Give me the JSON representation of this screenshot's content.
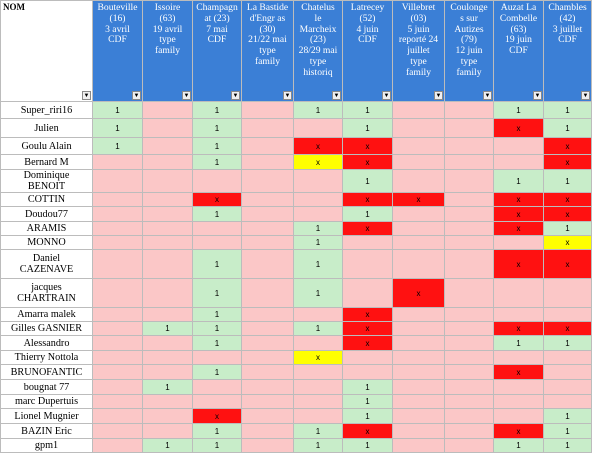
{
  "colors": {
    "header": "#3b7fd6",
    "empty": "#fbc7c7",
    "present": "#c8edc9",
    "absent_red": "#ff1111",
    "pending_yellow": "#ffff00"
  },
  "name_header": "NOM",
  "dropdown_icon": "chevron-down-icon",
  "columns": [
    "Bouteville\n(16)\n3 avril\nCDF",
    "Issoire\n(63)\n19 avril\ntype\nfamily",
    "Champagn\nat (23)\n7 mai\nCDF",
    "La Bastide\nd'Engr as\n(30)\n21/22 mai\ntype\nfamily",
    "Chatelus\nle\nMarcheix\n(23)\n28/29 mai\ntype\nhistoriq",
    "Latrecey\n(52)\n4 juin\nCDF",
    "Villebret\n(03)\n5 juin\nreporté 24\njuillet\ntype\nfamily",
    "Coulonge\ns sur\nAutizes\n(79)\n12 juin\ntype\nfamily",
    "Auzat La\nCombelle\n(63)\n19 juin\nCDF",
    "Chambles\n(42)\n3 juillet\nCDF"
  ],
  "rows": [
    {
      "name": "Super_riri16",
      "cells": [
        {
          "s": "g",
          "v": "1"
        },
        {
          "s": "e",
          "v": ""
        },
        {
          "s": "g",
          "v": "1"
        },
        {
          "s": "e",
          "v": ""
        },
        {
          "s": "g",
          "v": "1"
        },
        {
          "s": "g",
          "v": "1"
        },
        {
          "s": "e",
          "v": ""
        },
        {
          "s": "e",
          "v": ""
        },
        {
          "s": "g",
          "v": "1"
        },
        {
          "s": "g",
          "v": "1"
        }
      ]
    },
    {
      "name": "Julien",
      "cells": [
        {
          "s": "g",
          "v": "1"
        },
        {
          "s": "e",
          "v": ""
        },
        {
          "s": "g",
          "v": "1"
        },
        {
          "s": "e",
          "v": ""
        },
        {
          "s": "e",
          "v": ""
        },
        {
          "s": "g",
          "v": "1"
        },
        {
          "s": "e",
          "v": ""
        },
        {
          "s": "e",
          "v": ""
        },
        {
          "s": "r",
          "v": "x"
        },
        {
          "s": "g",
          "v": "1"
        }
      ]
    },
    {
      "name": "Goulu  Alain",
      "cells": [
        {
          "s": "g",
          "v": "1"
        },
        {
          "s": "e",
          "v": ""
        },
        {
          "s": "g",
          "v": "1"
        },
        {
          "s": "e",
          "v": ""
        },
        {
          "s": "r",
          "v": "x"
        },
        {
          "s": "r",
          "v": "x"
        },
        {
          "s": "e",
          "v": ""
        },
        {
          "s": "e",
          "v": ""
        },
        {
          "s": "e",
          "v": ""
        },
        {
          "s": "r",
          "v": "x"
        }
      ]
    },
    {
      "name": "Bernard  M",
      "cells": [
        {
          "s": "e",
          "v": ""
        },
        {
          "s": "e",
          "v": ""
        },
        {
          "s": "g",
          "v": "1"
        },
        {
          "s": "e",
          "v": ""
        },
        {
          "s": "y",
          "v": "x"
        },
        {
          "s": "r",
          "v": "x"
        },
        {
          "s": "e",
          "v": ""
        },
        {
          "s": "e",
          "v": ""
        },
        {
          "s": "e",
          "v": ""
        },
        {
          "s": "r",
          "v": "x"
        }
      ]
    },
    {
      "name": "Dominique\nBENOIT",
      "cells": [
        {
          "s": "e",
          "v": ""
        },
        {
          "s": "e",
          "v": ""
        },
        {
          "s": "e",
          "v": ""
        },
        {
          "s": "e",
          "v": ""
        },
        {
          "s": "e",
          "v": ""
        },
        {
          "s": "g",
          "v": "1"
        },
        {
          "s": "e",
          "v": ""
        },
        {
          "s": "e",
          "v": ""
        },
        {
          "s": "g",
          "v": "1"
        },
        {
          "s": "g",
          "v": "1"
        }
      ]
    },
    {
      "name": "COTTIN",
      "cells": [
        {
          "s": "e",
          "v": ""
        },
        {
          "s": "e",
          "v": ""
        },
        {
          "s": "r",
          "v": "x"
        },
        {
          "s": "e",
          "v": ""
        },
        {
          "s": "e",
          "v": ""
        },
        {
          "s": "r",
          "v": "x"
        },
        {
          "s": "r",
          "v": "x"
        },
        {
          "s": "e",
          "v": ""
        },
        {
          "s": "r",
          "v": "x"
        },
        {
          "s": "r",
          "v": "x"
        }
      ]
    },
    {
      "name": "Doudou77",
      "cells": [
        {
          "s": "e",
          "v": ""
        },
        {
          "s": "e",
          "v": ""
        },
        {
          "s": "g",
          "v": "1"
        },
        {
          "s": "e",
          "v": ""
        },
        {
          "s": "e",
          "v": ""
        },
        {
          "s": "g",
          "v": "1"
        },
        {
          "s": "e",
          "v": ""
        },
        {
          "s": "e",
          "v": ""
        },
        {
          "s": "r",
          "v": "x"
        },
        {
          "s": "r",
          "v": "x"
        }
      ]
    },
    {
      "name": "ARAMIS",
      "cells": [
        {
          "s": "e",
          "v": ""
        },
        {
          "s": "e",
          "v": ""
        },
        {
          "s": "e",
          "v": ""
        },
        {
          "s": "e",
          "v": ""
        },
        {
          "s": "g",
          "v": "1"
        },
        {
          "s": "r",
          "v": "x"
        },
        {
          "s": "e",
          "v": ""
        },
        {
          "s": "e",
          "v": ""
        },
        {
          "s": "r",
          "v": "x"
        },
        {
          "s": "g",
          "v": "1"
        }
      ]
    },
    {
      "name": "MONNO",
      "cells": [
        {
          "s": "e",
          "v": ""
        },
        {
          "s": "e",
          "v": ""
        },
        {
          "s": "e",
          "v": ""
        },
        {
          "s": "e",
          "v": ""
        },
        {
          "s": "g",
          "v": "1"
        },
        {
          "s": "e",
          "v": ""
        },
        {
          "s": "e",
          "v": ""
        },
        {
          "s": "e",
          "v": ""
        },
        {
          "s": "e",
          "v": ""
        },
        {
          "s": "y",
          "v": "x"
        }
      ]
    },
    {
      "name": "Daniel\nCAZENAVE",
      "cells": [
        {
          "s": "e",
          "v": ""
        },
        {
          "s": "e",
          "v": ""
        },
        {
          "s": "g",
          "v": "1"
        },
        {
          "s": "e",
          "v": ""
        },
        {
          "s": "g",
          "v": "1"
        },
        {
          "s": "e",
          "v": ""
        },
        {
          "s": "e",
          "v": ""
        },
        {
          "s": "e",
          "v": ""
        },
        {
          "s": "r",
          "v": "x"
        },
        {
          "s": "r",
          "v": "x"
        }
      ]
    },
    {
      "name": "jacques\nCHARTRAIN",
      "cells": [
        {
          "s": "e",
          "v": ""
        },
        {
          "s": "e",
          "v": ""
        },
        {
          "s": "g",
          "v": "1"
        },
        {
          "s": "e",
          "v": ""
        },
        {
          "s": "g",
          "v": "1"
        },
        {
          "s": "e",
          "v": ""
        },
        {
          "s": "r",
          "v": "x"
        },
        {
          "s": "e",
          "v": ""
        },
        {
          "s": "e",
          "v": ""
        },
        {
          "s": "e",
          "v": ""
        }
      ]
    },
    {
      "name": "Amarra malek",
      "cells": [
        {
          "s": "e",
          "v": ""
        },
        {
          "s": "e",
          "v": ""
        },
        {
          "s": "g",
          "v": "1"
        },
        {
          "s": "e",
          "v": ""
        },
        {
          "s": "e",
          "v": ""
        },
        {
          "s": "r",
          "v": "x"
        },
        {
          "s": "e",
          "v": ""
        },
        {
          "s": "e",
          "v": ""
        },
        {
          "s": "e",
          "v": ""
        },
        {
          "s": "e",
          "v": ""
        }
      ]
    },
    {
      "name": "Gilles GASNIER",
      "cells": [
        {
          "s": "e",
          "v": ""
        },
        {
          "s": "g",
          "v": "1"
        },
        {
          "s": "g",
          "v": "1"
        },
        {
          "s": "e",
          "v": ""
        },
        {
          "s": "g",
          "v": "1"
        },
        {
          "s": "r",
          "v": "x"
        },
        {
          "s": "e",
          "v": ""
        },
        {
          "s": "e",
          "v": ""
        },
        {
          "s": "r",
          "v": "x"
        },
        {
          "s": "r",
          "v": "x"
        }
      ]
    },
    {
      "name": "Alessandro",
      "cells": [
        {
          "s": "e",
          "v": ""
        },
        {
          "s": "e",
          "v": ""
        },
        {
          "s": "g",
          "v": "1"
        },
        {
          "s": "e",
          "v": ""
        },
        {
          "s": "e",
          "v": ""
        },
        {
          "s": "r",
          "v": "x"
        },
        {
          "s": "e",
          "v": ""
        },
        {
          "s": "e",
          "v": ""
        },
        {
          "s": "g",
          "v": "1"
        },
        {
          "s": "g",
          "v": "1"
        }
      ]
    },
    {
      "name": "Thierry  Nottola",
      "cells": [
        {
          "s": "e",
          "v": ""
        },
        {
          "s": "e",
          "v": ""
        },
        {
          "s": "e",
          "v": ""
        },
        {
          "s": "e",
          "v": ""
        },
        {
          "s": "y",
          "v": "x"
        },
        {
          "s": "e",
          "v": ""
        },
        {
          "s": "e",
          "v": ""
        },
        {
          "s": "e",
          "v": ""
        },
        {
          "s": "e",
          "v": ""
        },
        {
          "s": "e",
          "v": ""
        }
      ]
    },
    {
      "name": "BRUNOFANTIC",
      "cells": [
        {
          "s": "e",
          "v": ""
        },
        {
          "s": "e",
          "v": ""
        },
        {
          "s": "g",
          "v": "1"
        },
        {
          "s": "e",
          "v": ""
        },
        {
          "s": "e",
          "v": ""
        },
        {
          "s": "e",
          "v": ""
        },
        {
          "s": "e",
          "v": ""
        },
        {
          "s": "e",
          "v": ""
        },
        {
          "s": "r",
          "v": "x"
        },
        {
          "s": "e",
          "v": ""
        }
      ]
    },
    {
      "name": "bougnat 77",
      "cells": [
        {
          "s": "e",
          "v": ""
        },
        {
          "s": "g",
          "v": "1"
        },
        {
          "s": "e",
          "v": ""
        },
        {
          "s": "e",
          "v": ""
        },
        {
          "s": "e",
          "v": ""
        },
        {
          "s": "g",
          "v": "1"
        },
        {
          "s": "e",
          "v": ""
        },
        {
          "s": "e",
          "v": ""
        },
        {
          "s": "e",
          "v": ""
        },
        {
          "s": "e",
          "v": ""
        }
      ]
    },
    {
      "name": "marc Dupertuis",
      "cells": [
        {
          "s": "e",
          "v": ""
        },
        {
          "s": "e",
          "v": ""
        },
        {
          "s": "e",
          "v": ""
        },
        {
          "s": "e",
          "v": ""
        },
        {
          "s": "e",
          "v": ""
        },
        {
          "s": "g",
          "v": "1"
        },
        {
          "s": "e",
          "v": ""
        },
        {
          "s": "e",
          "v": ""
        },
        {
          "s": "e",
          "v": ""
        },
        {
          "s": "e",
          "v": ""
        }
      ]
    },
    {
      "name": "Lionel Mugnier",
      "cells": [
        {
          "s": "e",
          "v": ""
        },
        {
          "s": "e",
          "v": ""
        },
        {
          "s": "r",
          "v": "x"
        },
        {
          "s": "e",
          "v": ""
        },
        {
          "s": "e",
          "v": ""
        },
        {
          "s": "g",
          "v": "1"
        },
        {
          "s": "e",
          "v": ""
        },
        {
          "s": "e",
          "v": ""
        },
        {
          "s": "e",
          "v": ""
        },
        {
          "s": "g",
          "v": "1"
        }
      ]
    },
    {
      "name": "BAZIN Eric",
      "cells": [
        {
          "s": "e",
          "v": ""
        },
        {
          "s": "e",
          "v": ""
        },
        {
          "s": "g",
          "v": "1"
        },
        {
          "s": "e",
          "v": ""
        },
        {
          "s": "g",
          "v": "1"
        },
        {
          "s": "r",
          "v": "x"
        },
        {
          "s": "e",
          "v": ""
        },
        {
          "s": "e",
          "v": ""
        },
        {
          "s": "r",
          "v": "x"
        },
        {
          "s": "g",
          "v": "1"
        }
      ]
    },
    {
      "name": "gpm1",
      "cells": [
        {
          "s": "e",
          "v": ""
        },
        {
          "s": "g",
          "v": "1"
        },
        {
          "s": "g",
          "v": "1"
        },
        {
          "s": "e",
          "v": ""
        },
        {
          "s": "g",
          "v": "1"
        },
        {
          "s": "g",
          "v": "1"
        },
        {
          "s": "e",
          "v": ""
        },
        {
          "s": "e",
          "v": ""
        },
        {
          "s": "g",
          "v": "1"
        },
        {
          "s": "g",
          "v": "1"
        }
      ]
    }
  ]
}
